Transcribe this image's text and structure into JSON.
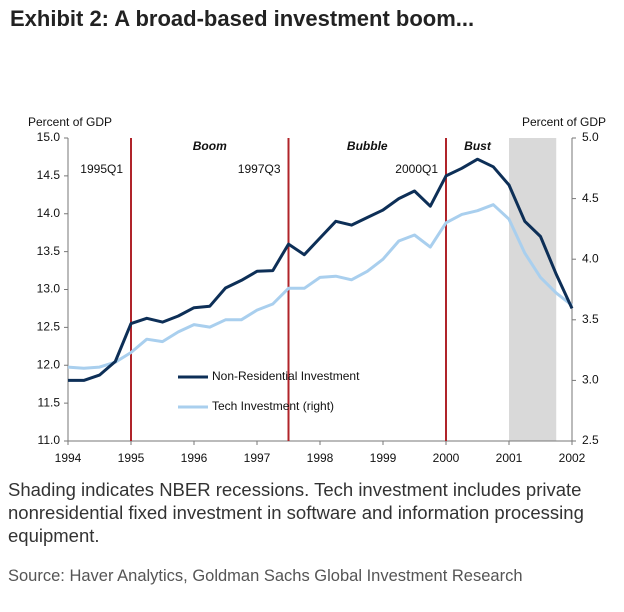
{
  "chart_data": {
    "type": "line",
    "title": "Exhibit 2: A broad-based investment boom...",
    "y_label": "Percent of GDP",
    "y2_label": "Percent of GDP",
    "x": [
      1994,
      1994.25,
      1994.5,
      1994.75,
      1995,
      1995.25,
      1995.5,
      1995.75,
      1996,
      1996.25,
      1996.5,
      1996.75,
      1997,
      1997.25,
      1997.5,
      1997.75,
      1998,
      1998.25,
      1998.5,
      1998.75,
      1999,
      1999.25,
      1999.5,
      1999.75,
      2000,
      2000.25,
      2000.5,
      2000.75,
      2001,
      2001.25,
      2001.5,
      2001.75,
      2002
    ],
    "series": [
      {
        "name": "Non-Residential Investment",
        "color": "#0d2f57",
        "axis": "y",
        "values": [
          11.8,
          11.8,
          11.87,
          12.05,
          12.55,
          12.62,
          12.57,
          12.65,
          12.76,
          12.78,
          13.02,
          13.12,
          13.24,
          13.25,
          13.6,
          13.46,
          13.68,
          13.9,
          13.85,
          13.95,
          14.05,
          14.2,
          14.3,
          14.1,
          14.5,
          14.6,
          14.72,
          14.62,
          14.38,
          13.9,
          13.7,
          13.2,
          12.75
        ]
      },
      {
        "name": "Tech Investment (right)",
        "color": "#a9cfee",
        "axis": "y2",
        "values": [
          3.11,
          3.1,
          3.11,
          3.15,
          3.23,
          3.34,
          3.32,
          3.4,
          3.46,
          3.44,
          3.5,
          3.5,
          3.58,
          3.63,
          3.76,
          3.76,
          3.85,
          3.86,
          3.83,
          3.9,
          4.0,
          4.15,
          4.2,
          4.1,
          4.3,
          4.37,
          4.4,
          4.45,
          4.33,
          4.05,
          3.85,
          3.72,
          3.62
        ]
      }
    ],
    "xlim": [
      1994,
      2002
    ],
    "xticks": [
      1994,
      1995,
      1996,
      1997,
      1998,
      1999,
      2000,
      2001,
      2002
    ],
    "ylim": [
      11,
      15
    ],
    "yticks": [
      {
        "value": 11,
        "label": "11.0"
      },
      11.5,
      {
        "value": 12,
        "label": "12.0"
      },
      12.5,
      {
        "value": 13,
        "label": "13.0"
      },
      13.5,
      {
        "value": 14,
        "label": "14.0"
      },
      14.5,
      {
        "value": 15,
        "label": "15.0"
      }
    ],
    "y2lim": [
      2.5,
      5
    ],
    "y2ticks": [
      2.5,
      {
        "value": 3,
        "label": "3.0"
      },
      3.5,
      {
        "value": 4,
        "label": "4.0"
      },
      4.5,
      {
        "value": 5,
        "label": "5.0"
      }
    ],
    "grid": false,
    "vlines": [
      {
        "x": 1995,
        "label": "1995Q1",
        "color": "#b0242a"
      },
      {
        "x": 1997.5,
        "label": "1997Q3",
        "color": "#b0242a"
      },
      {
        "x": 2000,
        "label": "2000Q1",
        "color": "#b0242a"
      }
    ],
    "phases": [
      "Boom",
      "Bubble",
      "Bust"
    ],
    "recession": {
      "x": [
        2001,
        2001.75
      ],
      "color": "#d9d9d9"
    }
  },
  "note": "Shading indicates NBER recessions. Tech investment includes private nonresidential fixed investment in software and information processing equipment.",
  "source": "Source: Haver Analytics, Goldman Sachs Global Investment Research"
}
